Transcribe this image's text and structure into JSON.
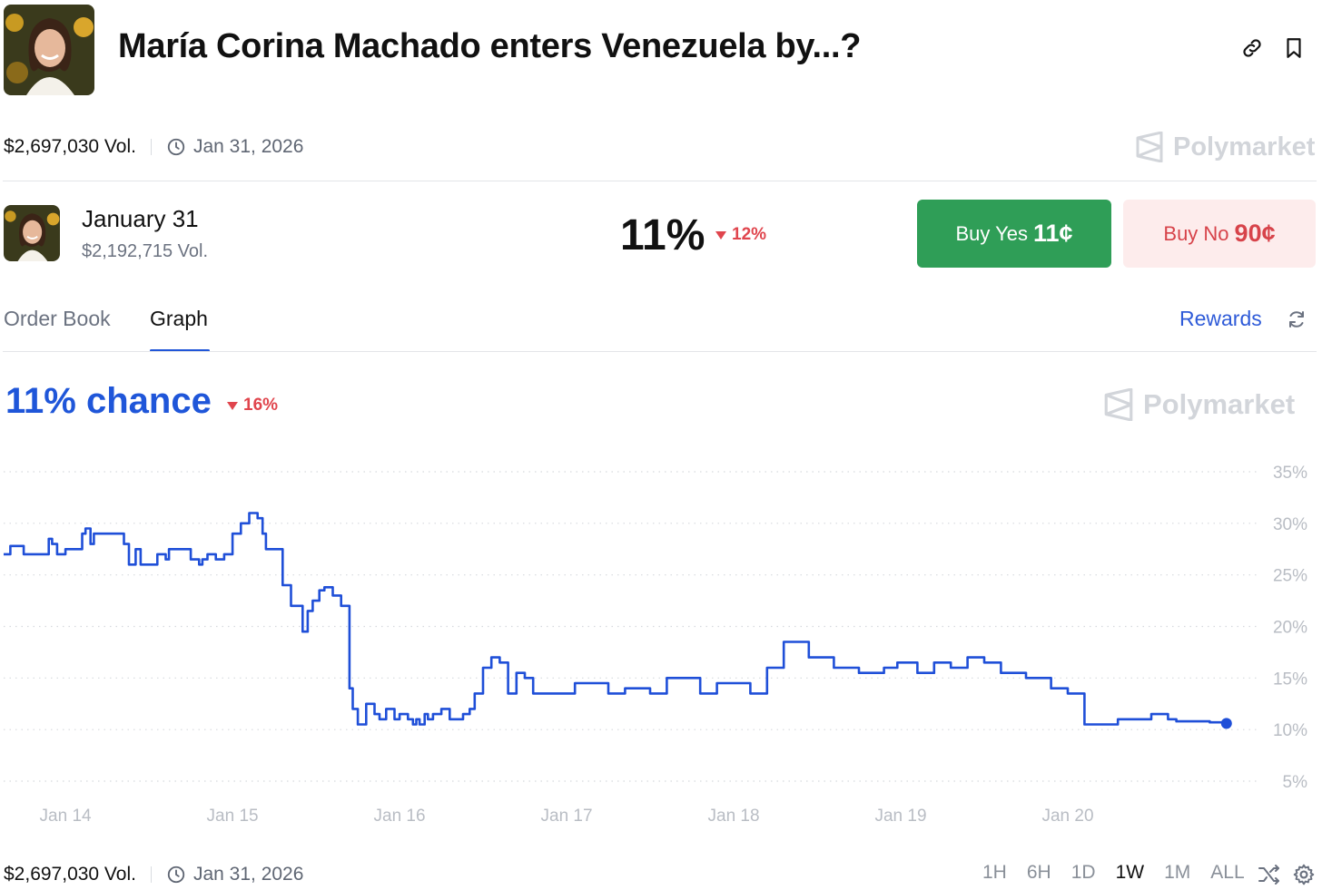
{
  "header": {
    "title": "María Corina Machado enters Venezuela by...?",
    "volume": "$2,697,030 Vol.",
    "end_date": "Jan 31, 2026",
    "brand": "Polymarket"
  },
  "outcome": {
    "name": "January 31",
    "volume": "$2,192,715 Vol.",
    "probability": "11%",
    "change": "12%",
    "buy_yes_label": "Buy Yes",
    "buy_yes_price": "11¢",
    "buy_no_label": "Buy No",
    "buy_no_price": "90¢"
  },
  "tabs": {
    "order_book": "Order Book",
    "graph": "Graph",
    "active": "graph",
    "rewards": "Rewards"
  },
  "graph": {
    "chance_label": "11% chance",
    "change": "16%",
    "brand": "Polymarket"
  },
  "footer": {
    "volume": "$2,697,030 Vol.",
    "end_date": "Jan 31, 2026",
    "ranges": [
      "1H",
      "6H",
      "1D",
      "1W",
      "1M",
      "ALL"
    ],
    "active_range": "1W"
  },
  "colors": {
    "line": "#1f4fd8",
    "yes_button": "#2f9e57",
    "no_button_bg": "#fdecec",
    "no_button_text": "#d7434a",
    "negative_change": "#e0454d",
    "accent": "#1f56d9"
  },
  "chart_data": {
    "type": "line",
    "ylim": [
      5,
      35
    ],
    "yticks": [
      35,
      30,
      25,
      20,
      15,
      10,
      5
    ],
    "ytick_labels": [
      "35%",
      "30%",
      "25%",
      "20%",
      "15%",
      "10%",
      "5%"
    ],
    "xtick_labels": [
      "Jan 14",
      "Jan 15",
      "Jan 16",
      "Jan 17",
      "Jan 18",
      "Jan 19",
      "Jan 20"
    ],
    "xlim": [
      -0.37,
      7.0
    ],
    "grid": true,
    "series": [
      {
        "x": [
          -0.37,
          -0.33,
          -0.25,
          -0.12,
          -0.1,
          -0.08,
          -0.05,
          0.0,
          0.1,
          0.12,
          0.15,
          0.17,
          0.22,
          0.3,
          0.35,
          0.38,
          0.42,
          0.45,
          0.48,
          0.5,
          0.55,
          0.6,
          0.62,
          0.65,
          0.7,
          0.75,
          0.8,
          0.82,
          0.85,
          0.9,
          0.95,
          1.0,
          1.05,
          1.1,
          1.15,
          1.18,
          1.2,
          1.25,
          1.3,
          1.35,
          1.42,
          1.45,
          1.48,
          1.52,
          1.55,
          1.6,
          1.65,
          1.7,
          1.72,
          1.75,
          1.8,
          1.85,
          1.88,
          1.92,
          1.97,
          2.0,
          2.05,
          2.08,
          2.1,
          2.12,
          2.15,
          2.17,
          2.2,
          2.25,
          2.3,
          2.35,
          2.38,
          2.42,
          2.45,
          2.5,
          2.55,
          2.6,
          2.65,
          2.7,
          2.73,
          2.75,
          2.8,
          2.85,
          2.9,
          3.0,
          3.05,
          3.1,
          3.15,
          3.25,
          3.35,
          3.5,
          3.6,
          3.8,
          3.9,
          4.0,
          4.1,
          4.2,
          4.3,
          4.45,
          4.6,
          4.75,
          4.9,
          4.98,
          5.1,
          5.2,
          5.3,
          5.4,
          5.5,
          5.6,
          5.75,
          5.9,
          6.0,
          6.1,
          6.2,
          6.3,
          6.4,
          6.5,
          6.6,
          6.65,
          6.7,
          6.85,
          6.95
        ],
        "y": [
          27.0,
          27.8,
          27.0,
          27.0,
          28.5,
          28.0,
          27.0,
          27.5,
          29.0,
          29.5,
          28.0,
          29.0,
          29.0,
          29.0,
          28.0,
          26.0,
          27.5,
          26.0,
          26.0,
          26.0,
          27.0,
          26.5,
          27.5,
          27.5,
          27.5,
          26.5,
          26.0,
          26.5,
          27.0,
          26.5,
          27.0,
          29.0,
          30.0,
          31.0,
          30.5,
          29.0,
          27.5,
          27.5,
          24.0,
          22.0,
          19.5,
          21.5,
          22.5,
          23.5,
          23.8,
          23.0,
          22.0,
          14.0,
          12.0,
          10.5,
          12.5,
          11.5,
          11.0,
          12.0,
          11.0,
          11.5,
          11.0,
          10.5,
          11.0,
          10.5,
          11.5,
          11.0,
          11.5,
          12.0,
          11.0,
          11.0,
          11.5,
          12.0,
          13.5,
          16.0,
          17.0,
          16.5,
          13.5,
          15.5,
          15.5,
          15.0,
          13.5,
          13.5,
          13.5,
          13.5,
          14.5,
          14.5,
          14.5,
          13.5,
          14.0,
          13.5,
          15.0,
          13.5,
          14.5,
          14.5,
          13.5,
          16.0,
          18.5,
          17.0,
          16.0,
          15.5,
          16.0,
          16.5,
          15.5,
          16.5,
          16.0,
          17.0,
          16.5,
          15.5,
          15.0,
          14.0,
          13.5,
          10.5,
          10.5,
          11.0,
          11.0,
          11.5,
          11.0,
          10.8,
          10.8,
          10.7,
          10.6
        ]
      }
    ]
  }
}
